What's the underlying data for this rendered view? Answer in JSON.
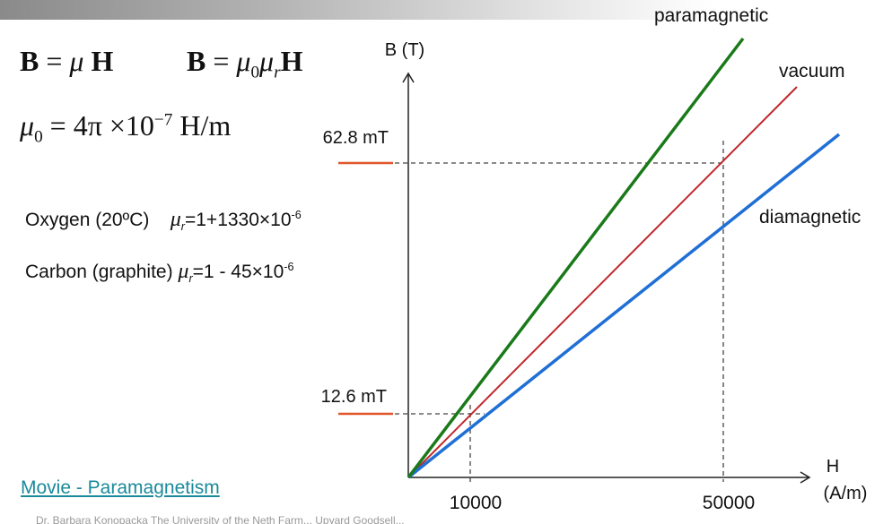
{
  "equations": {
    "b_eq_mu_h": {
      "B": "B",
      "eq": " = ",
      "mu": "μ",
      "H": " H"
    },
    "b_eq_mu0_mur_h": {
      "B": "B",
      "eq": " = ",
      "mu0": "μ",
      "sub0": "0",
      "mur": "μ",
      "subr": "r",
      "H": "H"
    },
    "mu0_def": {
      "mu0": "μ",
      "sub0": "0",
      "rhs": " = 4π ×10",
      "exp": "−7",
      "unit": " H/m"
    }
  },
  "materials": [
    {
      "name": "Oxygen (20ºC)",
      "mu": "μ",
      "sub": "r",
      "value": "=1+1330×10",
      "exp": "-6"
    },
    {
      "name": "Carbon (graphite) ",
      "mu": "μ",
      "sub": "r",
      "value": "=1 - 45×10",
      "exp": "-6"
    }
  ],
  "link": {
    "label": "Movie - Paramagnetism"
  },
  "footer": {
    "text": "Dr. Barbara Konopacka The University of the Neth Farm... Upyard Goodsell..."
  },
  "chart_data": {
    "type": "line",
    "y_axis_label": "B (T)",
    "x_axis_label": [
      "H",
      "(A/m)"
    ],
    "x_ticks": [
      "10000",
      "50000"
    ],
    "y_ticks": [
      "12.6 mT",
      "62.8 mT"
    ],
    "series": [
      {
        "name": "paramagnetic",
        "color": "#1a7a1a",
        "slope_relative": 1.45
      },
      {
        "name": "vacuum",
        "color": "#c0262b",
        "slope_relative": 1.0
      },
      {
        "name": "diamagnetic",
        "color": "#1f6fd6",
        "slope_relative": 0.75
      }
    ],
    "guides": [
      {
        "h": 10000,
        "b_label": "12.6 mT"
      },
      {
        "h": 50000,
        "b_label": "62.8 mT"
      }
    ],
    "tick_marker_color": "#e0552a"
  }
}
